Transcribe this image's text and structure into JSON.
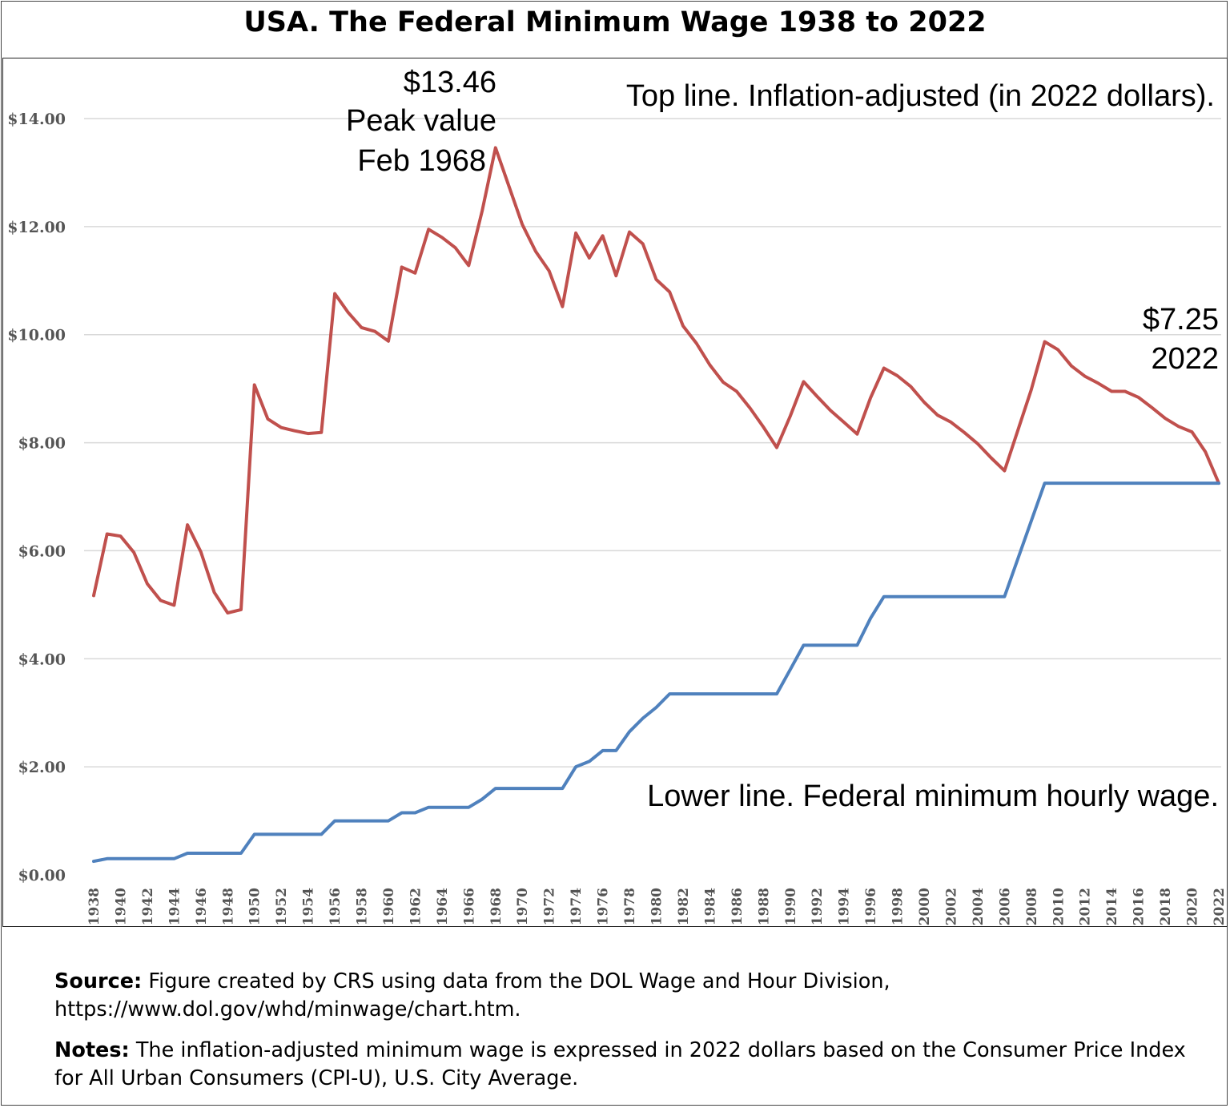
{
  "title": "USA. The Federal Minimum Wage 1938 to 2022",
  "annotations": {
    "top_line": "Top line. Inflation-adjusted (in 2022 dollars).",
    "lower_line": "Lower line. Federal minimum hourly wage.",
    "peak_value": "$13.46",
    "peak_label": "Peak value",
    "peak_date": "Feb 1968",
    "end_value": "$7.25",
    "end_year": "2022"
  },
  "footer": {
    "source_label": "Source:",
    "source_text": "Figure created by CRS using data from the DOL Wage and Hour Division, https://www.dol.gov/whd/minwage/chart.htm.",
    "notes_label": "Notes:",
    "notes_text": "The inflation-adjusted minimum wage is expressed in 2022 dollars based on the Consumer Price Index for All Urban Consumers (CPI-U), U.S. City Average."
  },
  "colors": {
    "inflation_adjusted": "#c0504d",
    "nominal": "#4f81bd",
    "grid": "#d9d9d9",
    "tick_text": "#555555"
  },
  "chart_data": {
    "type": "line",
    "title": "USA. The Federal Minimum Wage 1938 to 2022",
    "xlabel": "",
    "ylabel": "",
    "ylim": [
      0,
      14
    ],
    "y_ticks": [
      "$0.00",
      "$2.00",
      "$4.00",
      "$6.00",
      "$8.00",
      "$10.00",
      "$12.00",
      "$14.00"
    ],
    "x_tick_labels": [
      "1938",
      "1940",
      "1942",
      "1944",
      "1946",
      "1948",
      "1950",
      "1952",
      "1954",
      "1956",
      "1958",
      "1960",
      "1962",
      "1964",
      "1966",
      "1968",
      "1970",
      "1972",
      "1974",
      "1976",
      "1978",
      "1980",
      "1982",
      "1984",
      "1986",
      "1988",
      "1990",
      "1992",
      "1994",
      "1996",
      "1998",
      "2000",
      "2002",
      "2004",
      "2006",
      "2008",
      "2010",
      "2012",
      "2014",
      "2016",
      "2018",
      "2020",
      "2022"
    ],
    "grid": "horizontal",
    "x": [
      1938,
      1939,
      1940,
      1941,
      1942,
      1943,
      1944,
      1945,
      1946,
      1947,
      1948,
      1949,
      1950,
      1951,
      1952,
      1953,
      1954,
      1955,
      1956,
      1957,
      1958,
      1959,
      1960,
      1961,
      1962,
      1963,
      1964,
      1965,
      1966,
      1967,
      1968,
      1969,
      1970,
      1971,
      1972,
      1973,
      1974,
      1975,
      1976,
      1977,
      1978,
      1979,
      1980,
      1981,
      1982,
      1983,
      1984,
      1985,
      1986,
      1987,
      1988,
      1989,
      1990,
      1991,
      1992,
      1993,
      1994,
      1995,
      1996,
      1997,
      1998,
      1999,
      2000,
      2001,
      2002,
      2003,
      2004,
      2005,
      2006,
      2007,
      2008,
      2009,
      2010,
      2011,
      2012,
      2013,
      2014,
      2015,
      2016,
      2017,
      2018,
      2019,
      2020,
      2021,
      2022
    ],
    "series": [
      {
        "key": "inflation_adjusted",
        "values": [
          5.17,
          6.31,
          6.27,
          5.97,
          5.39,
          5.08,
          4.99,
          6.48,
          5.98,
          5.23,
          4.85,
          4.91,
          9.07,
          8.44,
          8.28,
          8.22,
          8.17,
          8.19,
          10.76,
          10.41,
          10.13,
          10.06,
          9.88,
          11.25,
          11.14,
          11.95,
          11.8,
          11.61,
          11.28,
          12.29,
          13.46,
          12.75,
          12.04,
          11.54,
          11.18,
          10.52,
          11.88,
          11.42,
          11.83,
          11.09,
          11.9,
          11.68,
          11.02,
          10.79,
          10.16,
          9.84,
          9.44,
          9.12,
          8.95,
          8.64,
          8.29,
          7.91,
          8.49,
          9.13,
          8.86,
          8.6,
          8.38,
          8.16,
          8.83,
          9.38,
          9.24,
          9.04,
          8.75,
          8.51,
          8.38,
          8.19,
          7.98,
          7.72,
          7.48,
          8.23,
          8.98,
          9.87,
          9.72,
          9.42,
          9.23,
          9.1,
          8.95,
          8.95,
          8.84,
          8.65,
          8.45,
          8.3,
          8.2,
          7.83,
          7.25
        ]
      },
      {
        "key": "nominal",
        "values": [
          0.25,
          0.3,
          0.3,
          0.3,
          0.3,
          0.3,
          0.3,
          0.4,
          0.4,
          0.4,
          0.4,
          0.4,
          0.75,
          0.75,
          0.75,
          0.75,
          0.75,
          0.75,
          1.0,
          1.0,
          1.0,
          1.0,
          1.0,
          1.15,
          1.15,
          1.25,
          1.25,
          1.25,
          1.25,
          1.4,
          1.6,
          1.6,
          1.6,
          1.6,
          1.6,
          1.6,
          2.0,
          2.1,
          2.3,
          2.3,
          2.65,
          2.9,
          3.1,
          3.35,
          3.35,
          3.35,
          3.35,
          3.35,
          3.35,
          3.35,
          3.35,
          3.35,
          3.8,
          4.25,
          4.25,
          4.25,
          4.25,
          4.25,
          4.75,
          5.15,
          5.15,
          5.15,
          5.15,
          5.15,
          5.15,
          5.15,
          5.15,
          5.15,
          5.15,
          5.85,
          6.55,
          7.25,
          7.25,
          7.25,
          7.25,
          7.25,
          7.25,
          7.25,
          7.25,
          7.25,
          7.25,
          7.25,
          7.25,
          7.25,
          7.25
        ]
      }
    ]
  }
}
